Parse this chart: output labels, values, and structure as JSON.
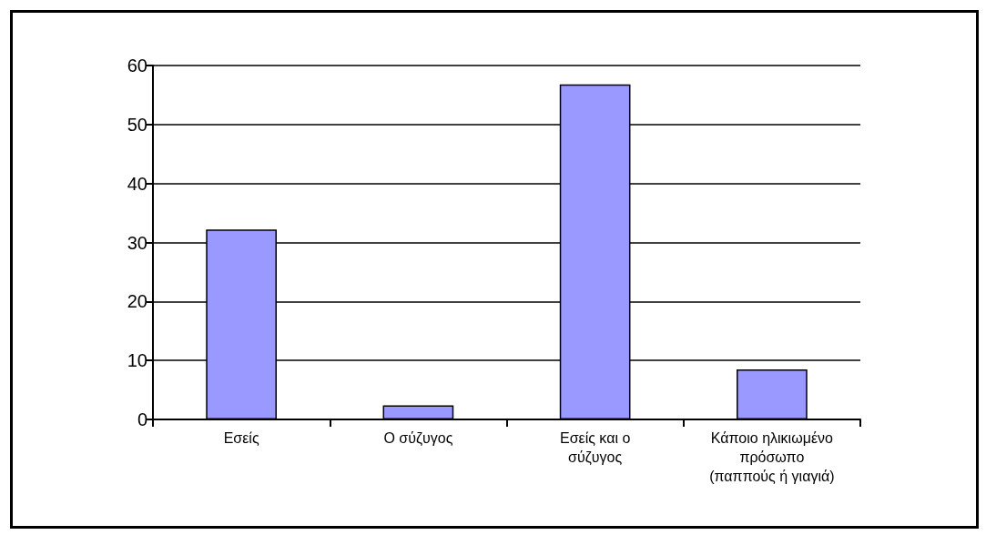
{
  "chart_data": {
    "type": "bar",
    "categories": [
      "Εσείς",
      "Ο σύζυγος",
      "Εσείς και ο\nσύζυγος",
      "Κάποιο ηλικιωμένο\nπρόσωπο\n(παππούς ή γιαγιά)"
    ],
    "values": [
      32.2,
      2.4,
      56.8,
      8.5
    ],
    "color": "#9999ff",
    "ylim": [
      0,
      60
    ],
    "yticks": [
      0,
      10,
      20,
      30,
      40,
      50,
      60
    ],
    "grid": "y"
  }
}
